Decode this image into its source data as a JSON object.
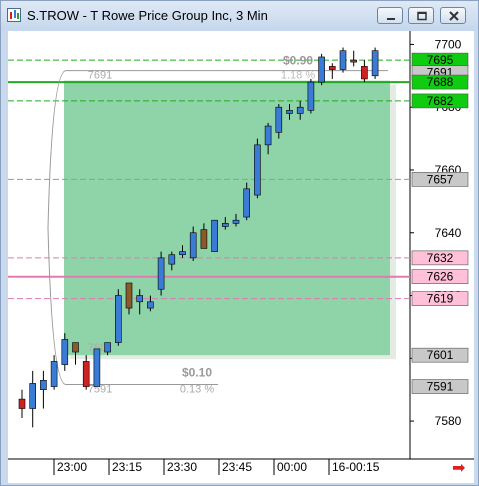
{
  "window": {
    "title": "S.TROW - T Rowe Price Group Inc, 3 Min",
    "minimize_label": "minimize",
    "maximize_label": "maximize",
    "close_label": "close"
  },
  "colors": {
    "up": "#3a7bd5",
    "down": "#cc2222",
    "neutral": "#8b5a2b",
    "green_line": "#22aa22",
    "pink_line": "#e07ab0",
    "box_fill": "#8fd4a8",
    "price_tag_green": "#10cc10",
    "price_tag_pink": "#ffc0d8",
    "price_tag_gray": "#c8c8c8"
  },
  "chart_data": {
    "type": "candlestick",
    "title": "S.TROW - T Rowe Price Group Inc, 3 Min",
    "y_ticks": [
      "7700",
      "7680",
      "7660",
      "7640",
      "7620",
      "7600",
      "7580"
    ],
    "ylim": [
      7574,
      7703
    ],
    "x_ticks": [
      "23:00",
      "23:15",
      "23:30",
      "23:45",
      "00:00",
      "16-00:15"
    ],
    "price_tags": [
      {
        "label": "7695",
        "value": 7695,
        "kind": "green"
      },
      {
        "label": "7691",
        "value": 7691,
        "kind": "gray"
      },
      {
        "label": "7688",
        "value": 7688,
        "kind": "green"
      },
      {
        "label": "7682",
        "value": 7682,
        "kind": "green"
      },
      {
        "label": "7657",
        "value": 7657,
        "kind": "gray"
      },
      {
        "label": "7632",
        "value": 7632,
        "kind": "pink"
      },
      {
        "label": "7626",
        "value": 7626,
        "kind": "pink"
      },
      {
        "label": "7619",
        "value": 7619,
        "kind": "pink"
      },
      {
        "label": "7601",
        "value": 7601,
        "kind": "gray"
      },
      {
        "label": "7591",
        "value": 7591,
        "kind": "gray"
      }
    ],
    "horizontal_lines": [
      {
        "value": 7695,
        "style": "dash",
        "color": "green"
      },
      {
        "value": 7688,
        "style": "solid",
        "color": "green"
      },
      {
        "value": 7682,
        "style": "dash",
        "color": "green"
      },
      {
        "value": 7657,
        "style": "dash",
        "color": "gray"
      },
      {
        "value": 7632,
        "style": "dash",
        "color": "pink"
      },
      {
        "value": 7626,
        "style": "solid",
        "color": "pink"
      },
      {
        "value": 7619,
        "style": "dash",
        "color": "pink"
      }
    ],
    "measure": {
      "low": 7591,
      "high": 7691,
      "up_change": "$0.90",
      "up_pct": "1.18 %",
      "down_change": "$0.10",
      "down_pct": "0.13 %",
      "high_label": "7691",
      "low_label": "7591",
      "mid_label": "7601"
    },
    "candles": [
      {
        "o": 7584,
        "h": 7590,
        "l": 7581,
        "c": 7587,
        "dir": "down"
      },
      {
        "o": 7584,
        "h": 7596,
        "l": 7578,
        "c": 7592,
        "dir": "up"
      },
      {
        "o": 7590,
        "h": 7596,
        "l": 7584,
        "c": 7593,
        "dir": "up"
      },
      {
        "o": 7591,
        "h": 7601,
        "l": 7590,
        "c": 7599,
        "dir": "up"
      },
      {
        "o": 7598,
        "h": 7608,
        "l": 7596,
        "c": 7606,
        "dir": "up"
      },
      {
        "o": 7602,
        "h": 7605,
        "l": 7598,
        "c": 7605,
        "dir": "neutral"
      },
      {
        "o": 7599,
        "h": 7601,
        "l": 7590,
        "c": 7591,
        "dir": "down"
      },
      {
        "o": 7591,
        "h": 7603,
        "l": 7591,
        "c": 7603,
        "dir": "up"
      },
      {
        "o": 7602,
        "h": 7605,
        "l": 7601,
        "c": 7605,
        "dir": "up"
      },
      {
        "o": 7605,
        "h": 7622,
        "l": 7604,
        "c": 7620,
        "dir": "up"
      },
      {
        "o": 7616,
        "h": 7624,
        "l": 7614,
        "c": 7624,
        "dir": "neutral"
      },
      {
        "o": 7618,
        "h": 7622,
        "l": 7614,
        "c": 7620,
        "dir": "up"
      },
      {
        "o": 7616,
        "h": 7620,
        "l": 7615,
        "c": 7618,
        "dir": "up"
      },
      {
        "o": 7622,
        "h": 7634,
        "l": 7620,
        "c": 7632,
        "dir": "up"
      },
      {
        "o": 7630,
        "h": 7634,
        "l": 7628,
        "c": 7633,
        "dir": "up"
      },
      {
        "o": 7633,
        "h": 7636,
        "l": 7632,
        "c": 7634,
        "dir": "up"
      },
      {
        "o": 7632,
        "h": 7642,
        "l": 7631,
        "c": 7640,
        "dir": "up"
      },
      {
        "o": 7641,
        "h": 7643,
        "l": 7635,
        "c": 7635,
        "dir": "neutral"
      },
      {
        "o": 7634,
        "h": 7644,
        "l": 7634,
        "c": 7644,
        "dir": "up"
      },
      {
        "o": 7642,
        "h": 7645,
        "l": 7641,
        "c": 7643,
        "dir": "up"
      },
      {
        "o": 7643,
        "h": 7646,
        "l": 7642,
        "c": 7644,
        "dir": "up"
      },
      {
        "o": 7645,
        "h": 7656,
        "l": 7644,
        "c": 7654,
        "dir": "up"
      },
      {
        "o": 7652,
        "h": 7670,
        "l": 7651,
        "c": 7668,
        "dir": "up"
      },
      {
        "o": 7668,
        "h": 7675,
        "l": 7665,
        "c": 7674,
        "dir": "up"
      },
      {
        "o": 7672,
        "h": 7681,
        "l": 7670,
        "c": 7680,
        "dir": "up"
      },
      {
        "o": 7678,
        "h": 7681,
        "l": 7676,
        "c": 7679,
        "dir": "up"
      },
      {
        "o": 7678,
        "h": 7682,
        "l": 7676,
        "c": 7680,
        "dir": "up"
      },
      {
        "o": 7679,
        "h": 7689,
        "l": 7678,
        "c": 7688,
        "dir": "up"
      },
      {
        "o": 7688,
        "h": 7697,
        "l": 7687,
        "c": 7696,
        "dir": "up"
      },
      {
        "o": 7692,
        "h": 7694,
        "l": 7689,
        "c": 7693,
        "dir": "down"
      },
      {
        "o": 7692,
        "h": 7699,
        "l": 7691,
        "c": 7698,
        "dir": "up"
      },
      {
        "o": 7695,
        "h": 7698,
        "l": 7693,
        "c": 7695,
        "dir": "neutral"
      },
      {
        "o": 7693,
        "h": 7695,
        "l": 7688,
        "c": 7689,
        "dir": "down"
      },
      {
        "o": 7690,
        "h": 7699,
        "l": 7689,
        "c": 7698,
        "dir": "up"
      }
    ],
    "next_arrow": "➡"
  }
}
